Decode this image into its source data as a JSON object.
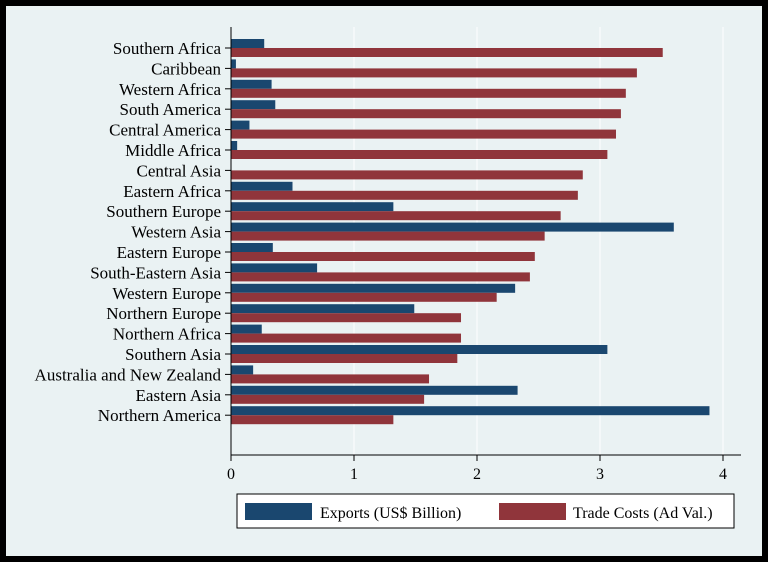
{
  "chart_data": {
    "type": "bar",
    "orientation": "horizontal",
    "categories": [
      "Southern Africa",
      "Caribbean",
      "Western Africa",
      "South America",
      "Central America",
      "Middle Africa",
      "Central Asia",
      "Eastern Africa",
      "Southern Europe",
      "Western Asia",
      "Eastern Europe",
      "South-Eastern Asia",
      "Western Europe",
      "Northern Europe",
      "Northern Africa",
      "Southern Asia",
      "Australia and New Zealand",
      "Eastern Asia",
      "Northern America"
    ],
    "series": [
      {
        "name": "Exports (US$ Billion)",
        "color": "#1a476f",
        "values": [
          0.27,
          0.04,
          0.33,
          0.36,
          0.15,
          0.05,
          0.0,
          0.5,
          1.32,
          3.6,
          0.34,
          0.7,
          2.31,
          1.49,
          0.25,
          3.06,
          0.18,
          2.33,
          3.89
        ]
      },
      {
        "name": "Trade Costs (Ad Val.)",
        "color": "#90353b",
        "values": [
          3.51,
          3.3,
          3.21,
          3.17,
          3.13,
          3.06,
          2.86,
          2.82,
          2.68,
          2.55,
          2.47,
          2.43,
          2.16,
          1.87,
          1.87,
          1.84,
          1.61,
          1.57,
          1.32
        ]
      }
    ],
    "x_ticks": [
      "0",
      "1",
      "2",
      "3",
      "4"
    ],
    "xlim": [
      0,
      4.1
    ],
    "grid": "vertical",
    "legend_placement": "bottom"
  }
}
